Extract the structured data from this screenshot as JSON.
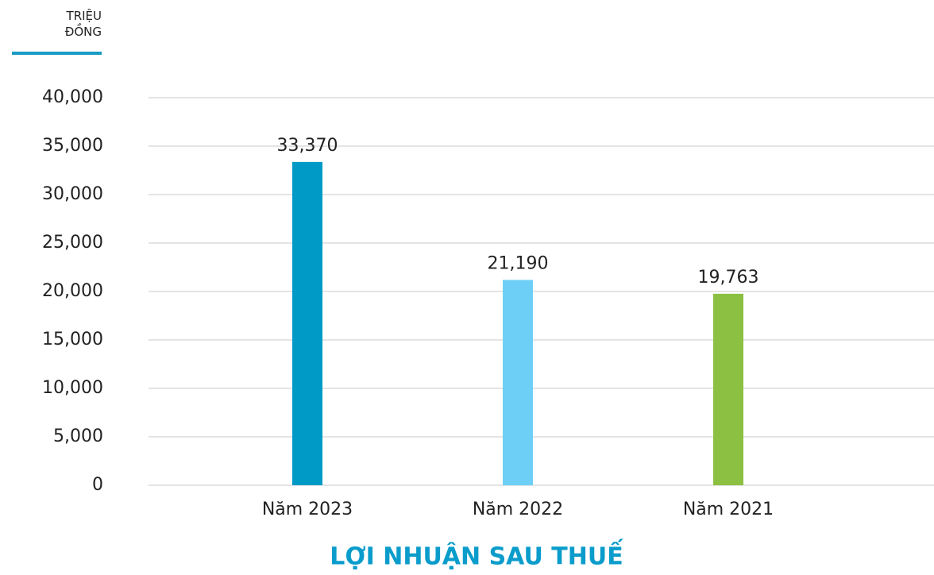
{
  "chart_data": {
    "type": "bar",
    "title": "LỢI NHUẬN SAU THUẾ",
    "ylabel": "TRIỆU ĐỒNG",
    "categories": [
      "Năm 2023",
      "Năm 2022",
      "Năm 2021"
    ],
    "values": [
      33370,
      21190,
      19763
    ],
    "value_labels": [
      "33,370",
      "21,190",
      "19,763"
    ],
    "colors": [
      "#009ac7",
      "#6ecff6",
      "#8cc043"
    ],
    "ylim": [
      0,
      40000
    ],
    "yticks": [
      0,
      {
        "value": 5000,
        "label": "5,000"
      },
      {
        "value": 10000,
        "label": "10,000"
      },
      {
        "value": 15000,
        "label": "15,000"
      },
      {
        "value": 20000,
        "label": "20,000"
      },
      {
        "value": 25000,
        "label": "25,000"
      },
      {
        "value": 30000,
        "label": "30,000"
      },
      {
        "value": 35000,
        "label": "35,000"
      },
      {
        "value": 40000,
        "label": "40,000"
      }
    ],
    "grid": true
  }
}
